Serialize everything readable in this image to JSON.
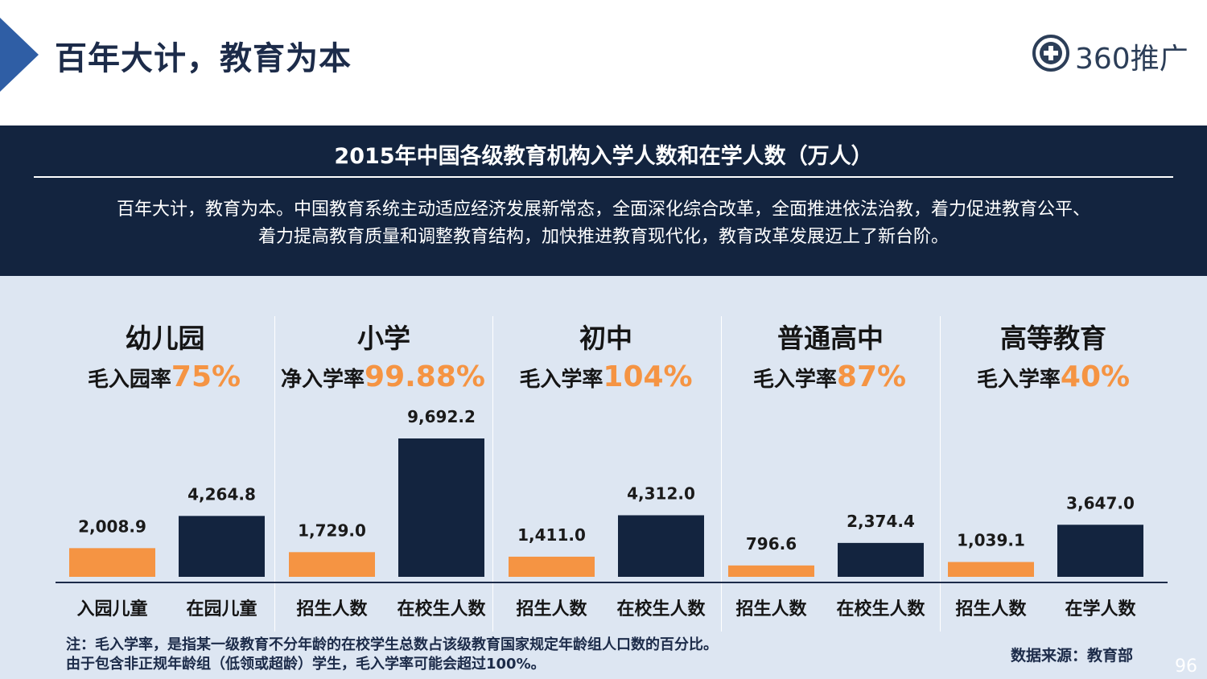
{
  "header": {
    "title": "百年大计，教育为本",
    "logo_text": "360推广",
    "logo_icon": "plus-circle-icon"
  },
  "band": {
    "title": "2015年中国各级教育机构入学人数和在学人数（万人）",
    "description_lines": [
      "百年大计，教育为本。中国教育系统主动适应经济发展新常态，全面深化综合改革，全面推进依法治教，着力促进教育公平、",
      "着力提高教育质量和调整教育结构，加快推进教育现代化，教育改革发展迈上了新台阶。"
    ]
  },
  "groups": [
    {
      "title": "幼儿园",
      "rate_label": "毛入园率",
      "rate_value": "75%"
    },
    {
      "title": "小学",
      "rate_label": "净入学率",
      "rate_value": "99.88%"
    },
    {
      "title": "初中",
      "rate_label": "毛入学率",
      "rate_value": "104%"
    },
    {
      "title": "普通高中",
      "rate_label": "毛入学率",
      "rate_value": "87%"
    },
    {
      "title": "高等教育",
      "rate_label": "毛入学率",
      "rate_value": "40%"
    }
  ],
  "chart_data": {
    "type": "bar",
    "categories": [
      "入园儿童",
      "在园儿童",
      "招生人数",
      "在校生人数",
      "招生人数",
      "在校生人数",
      "招生人数",
      "在校生人数",
      "招生人数",
      "在学人数"
    ],
    "values": [
      2008.9,
      4264.8,
      1729.0,
      9692.2,
      1411.0,
      4312.0,
      796.6,
      2374.4,
      1039.1,
      3647.0
    ],
    "value_labels": [
      "2,008.9",
      "4,264.8",
      "1,729.0",
      "9,692.2",
      "1,411.0",
      "4,312.0",
      "796.6",
      "2,374.4",
      "1,039.1",
      "3,647.0"
    ],
    "colors": [
      "#f59443",
      "#13243f"
    ],
    "ylim": [
      0,
      9692.2
    ]
  },
  "footer": {
    "note_lines": [
      "注：毛入学率，是指某一级教育不分年龄的在校学生总数占该级教育国家规定年龄组人口数的百分比。",
      "由于包含非正规年龄组（低领或超龄）学生，毛入学率可能会超过100%。"
    ],
    "source": "数据来源：教育部",
    "page_number": "96"
  }
}
